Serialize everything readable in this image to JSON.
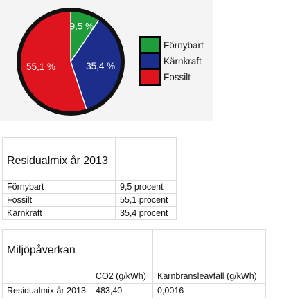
{
  "chart_data": {
    "type": "pie",
    "slices": [
      {
        "label": "Förnybart",
        "value": 9.5,
        "text": "9,5 %",
        "color": "#1f9d3a"
      },
      {
        "label": "Kärnkraft",
        "value": 35.4,
        "text": "35,4 %",
        "color": "#1b2e8c"
      },
      {
        "label": "Fossilt",
        "value": 55.1,
        "text": "55,1 %",
        "color": "#e0141e"
      }
    ],
    "legend_position": "right",
    "legend": [
      "Förnybart",
      "Kärnkraft",
      "Fossilt"
    ]
  },
  "residual_table": {
    "title": "Residualmix år 2013",
    "rows": [
      {
        "name": "Förnybart",
        "value": "9,5 procent"
      },
      {
        "name": "Fossilt",
        "value": "55,1 procent"
      },
      {
        "name": "Kärnkraft",
        "value": "35,4 procent"
      }
    ]
  },
  "environment_table": {
    "title": "Miljöpåverkan",
    "col_co2": "CO2 (g/kWh)",
    "col_waste": "Kärnbränsleavfall (g/kWh)",
    "row_label": "Residualmix år 2013",
    "co2": "483,40",
    "waste": "0,0016"
  }
}
